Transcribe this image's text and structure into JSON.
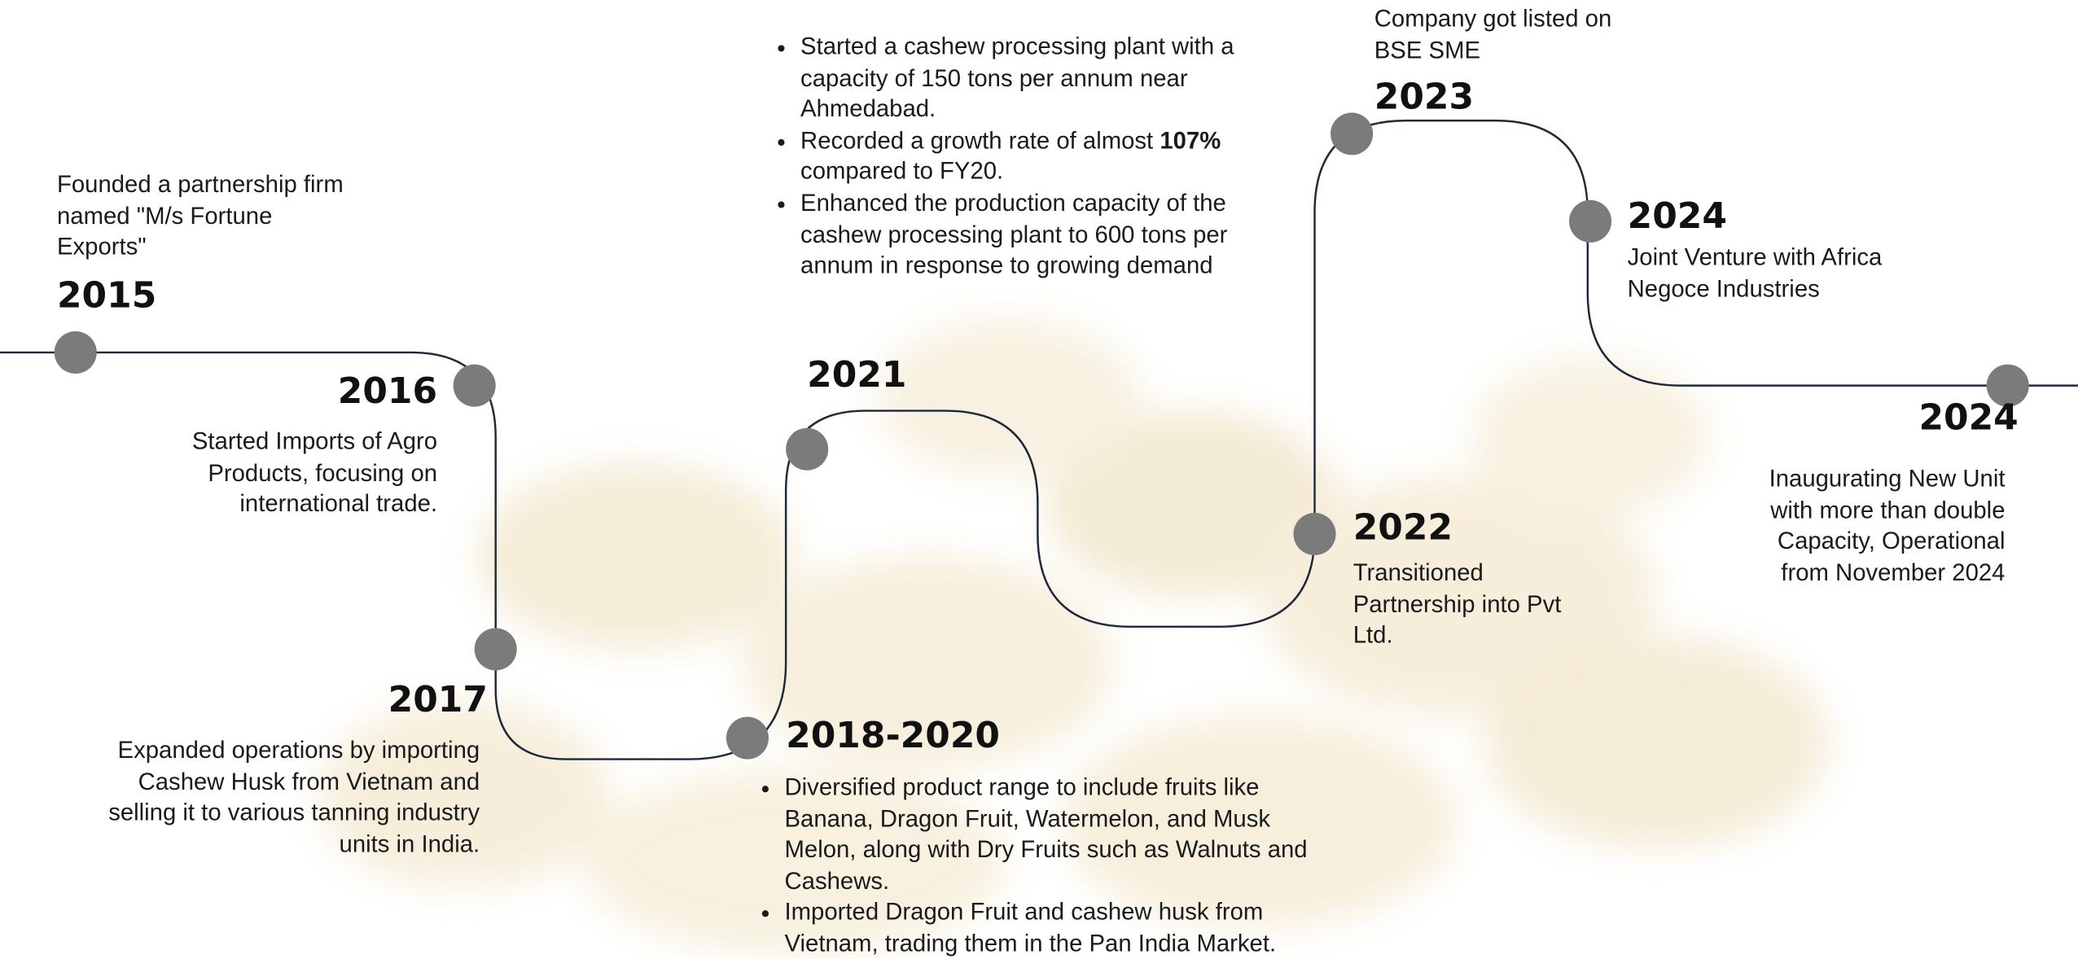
{
  "milestones": [
    {
      "year": "2015",
      "description": "Founded a partnership firm named \"M/s Fortune Exports\""
    },
    {
      "year": "2016",
      "description": "Started Imports of Agro Products, focusing on international trade."
    },
    {
      "year": "2017",
      "description": "Expanded operations by importing Cashew Husk from Vietnam and selling it to various tanning industry units in India."
    },
    {
      "year": "2018-2020",
      "bullets": [
        "Diversified product range to include fruits like Banana, Dragon Fruit, Watermelon, and Musk Melon, along with Dry Fruits such as Walnuts and Cashews.",
        "Imported Dragon Fruit and cashew husk from Vietnam, trading them in the Pan India Market."
      ]
    },
    {
      "year": "2021",
      "bullets": [
        "Started a cashew processing plant with a capacity of 150 tons per annum near Ahmedabad.",
        {
          "text": "Recorded a growth rate of almost ",
          "bold": "107%",
          "rest": " compared to FY20."
        },
        "Enhanced the production capacity of the cashew processing plant to 600 tons per annum in response to growing demand"
      ]
    },
    {
      "year": "2022",
      "description": "Transitioned Partnership into Pvt Ltd."
    },
    {
      "year": "2023",
      "description": "Company got listed on BSE SME"
    },
    {
      "year": "2024",
      "description": "Joint Venture with Africa Negoce Industries"
    },
    {
      "year": "2024",
      "description": "Inaugurating New Unit with more than double Capacity, Operational from November 2024"
    }
  ]
}
